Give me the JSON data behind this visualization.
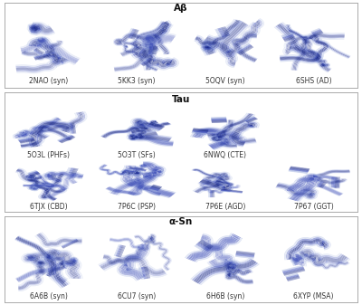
{
  "sections": [
    {
      "name": "Aβ",
      "rows": [
        [
          {
            "code": "2NAO",
            "label": "(syn)",
            "seed": 10
          },
          {
            "code": "5KK3",
            "label": "(syn)",
            "seed": 20
          },
          {
            "code": "5OQV",
            "label": "(syn)",
            "seed": 30
          },
          {
            "code": "6SHS",
            "label": "(AD)",
            "seed": 40
          }
        ]
      ]
    },
    {
      "name": "Tau",
      "rows": [
        [
          {
            "code": "5O3L",
            "label": "(PHFs)",
            "seed": 50
          },
          {
            "code": "5O3T",
            "label": "(SFs)",
            "seed": 60
          },
          {
            "code": "6NWQ",
            "label": "(CTE)",
            "seed": 70
          },
          {
            "code": "",
            "label": "",
            "seed": -1
          }
        ],
        [
          {
            "code": "6TJX",
            "label": "(CBD)",
            "seed": 80
          },
          {
            "code": "7P6C",
            "label": "(PSP)",
            "seed": 90
          },
          {
            "code": "7P6E",
            "label": "(AGD)",
            "seed": 100
          },
          {
            "code": "7P67",
            "label": "(GGT)",
            "seed": 110
          }
        ]
      ]
    },
    {
      "name": "α-Sn",
      "rows": [
        [
          {
            "code": "6A6B",
            "label": "(syn)",
            "seed": 120
          },
          {
            "code": "6CU7",
            "label": "(syn)",
            "seed": 130
          },
          {
            "code": "6H6B",
            "label": "(syn)",
            "seed": 140
          },
          {
            "code": "6XYP",
            "label": "(MSA)",
            "seed": 150
          }
        ]
      ]
    }
  ],
  "fig_width": 4.0,
  "fig_height": 3.37,
  "dpi": 100,
  "bg": "#ffffff",
  "border_color": "#aaaaaa",
  "header_fontsize": 7.5,
  "label_fontsize": 5.5,
  "dark_blue": "#1a2a8a",
  "mid_blue": "#4455bb",
  "light_blue": "#99aadd",
  "very_light": "#ccd4ee"
}
